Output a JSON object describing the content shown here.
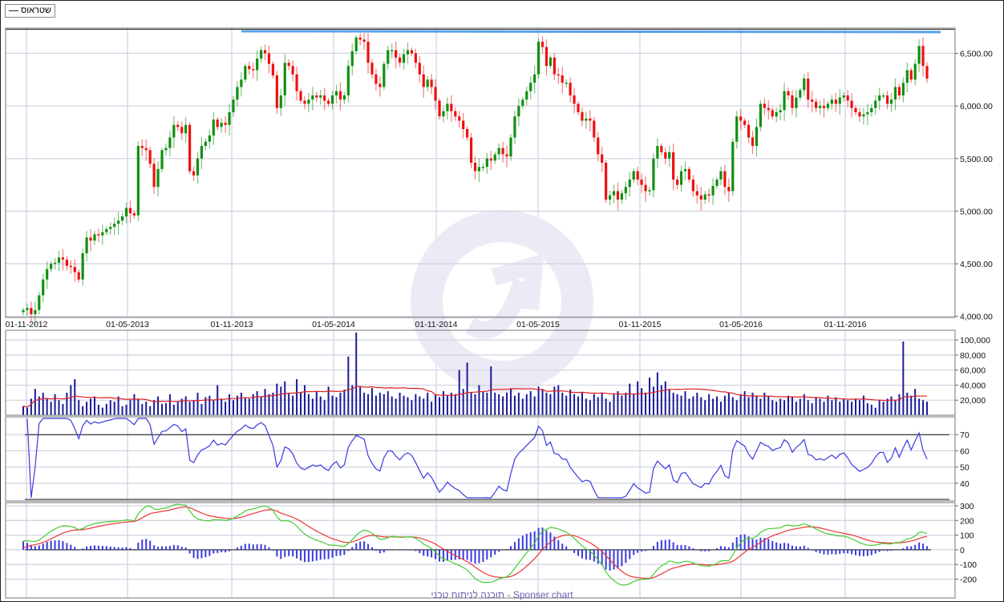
{
  "legend": {
    "label": "שטראוס"
  },
  "footer": {
    "text": "תוכנה לניתוח טכני - Sponser chart"
  },
  "colors": {
    "up": "#109010",
    "down": "#ee1111",
    "volume": "#1a1a9a",
    "volume_ma": "#e02020",
    "rsi": "#3a3ae0",
    "macd": "#44cc33",
    "signal": "#ee3333",
    "histogram": "#3a3ae0",
    "resistance": "#5aa0e8",
    "grid": "#d4d4e4"
  },
  "chart_data": [
    {
      "type": "candlestick",
      "panel": "price",
      "x_ticks": [
        "01-11-2012",
        "01-05-2013",
        "01-11-2013",
        "01-05-2014",
        "01-11-2014",
        "01-05-2015",
        "01-11-2015",
        "01-05-2016",
        "01-11-2016"
      ],
      "y_ticks": [
        "4,000.00",
        "4,500.00",
        "5,000.00",
        "5,500.00",
        "6,000.00",
        "6,500.00"
      ],
      "ylim": [
        3990,
        6740
      ],
      "grid": true,
      "resistance_level": 6710,
      "frequency": "weekly",
      "close": [
        4060,
        4080,
        4020,
        4060,
        4200,
        4350,
        4450,
        4500,
        4510,
        4560,
        4540,
        4480,
        4470,
        4420,
        4350,
        4600,
        4750,
        4720,
        4780,
        4770,
        4800,
        4830,
        4850,
        4880,
        4910,
        4950,
        5030,
        4980,
        4960,
        5620,
        5600,
        5580,
        5450,
        5230,
        5400,
        5580,
        5600,
        5700,
        5820,
        5800,
        5740,
        5820,
        5380,
        5340,
        5500,
        5620,
        5660,
        5720,
        5870,
        5800,
        5840,
        5820,
        5940,
        6060,
        6180,
        6250,
        6380,
        6350,
        6340,
        6450,
        6530,
        6500,
        6400,
        6290,
        5980,
        6100,
        6410,
        6380,
        6300,
        6140,
        6050,
        6020,
        6060,
        6100,
        6080,
        6100,
        6050,
        6020,
        6100,
        6140,
        6060,
        6100,
        6380,
        6520,
        6650,
        6630,
        6610,
        6410,
        6300,
        6210,
        6180,
        6400,
        6530,
        6530,
        6460,
        6410,
        6490,
        6530,
        6500,
        6410,
        6300,
        6180,
        6250,
        6180,
        6050,
        5900,
        5950,
        6020,
        5950,
        5900,
        5860,
        5780,
        5700,
        5460,
        5380,
        5420,
        5420,
        5500,
        5480,
        5540,
        5600,
        5540,
        5520,
        5700,
        5900,
        6000,
        6060,
        6140,
        6220,
        6300,
        6610,
        6560,
        6380,
        6460,
        6300,
        6290,
        6220,
        6220,
        6100,
        6020,
        5940,
        5860,
        5880,
        5860,
        5700,
        5540,
        5460,
        5110,
        5150,
        5190,
        5110,
        5170,
        5230,
        5300,
        5380,
        5300,
        5250,
        5190,
        5200,
        5500,
        5620,
        5560,
        5500,
        5560,
        5300,
        5250,
        5380,
        5400,
        5300,
        5190,
        5150,
        5110,
        5160,
        5150,
        5240,
        5300,
        5380,
        5230,
        5190,
        5660,
        5900,
        5860,
        5820,
        5700,
        5620,
        5800,
        6020,
        5980,
        5960,
        5900,
        5940,
        5960,
        6140,
        6100,
        5980,
        6080,
        6150,
        6260,
        6060,
        6040,
        5980,
        6000,
        5980,
        6020,
        6060,
        6020,
        6080,
        6100,
        6050,
        5980,
        5940,
        5900,
        5920,
        5940,
        5980,
        6050,
        6100,
        6100,
        6020,
        6060,
        6180,
        6100,
        6220,
        6340,
        6250,
        6400,
        6570,
        6380,
        6260
      ]
    },
    {
      "type": "bar",
      "panel": "volume",
      "y_ticks": [
        "20,000",
        "40,000",
        "60,000",
        "80,000",
        "100,000"
      ],
      "ylim": [
        0,
        113000
      ],
      "values": [
        12000,
        10000,
        22000,
        35000,
        25000,
        30000,
        22000,
        18000,
        28000,
        20000,
        15000,
        30000,
        40000,
        48000,
        20000,
        12000,
        18000,
        22000,
        25000,
        14000,
        10000,
        15000,
        20000,
        18000,
        25000,
        12000,
        14000,
        20000,
        28000,
        22000,
        15000,
        18000,
        12000,
        20000,
        25000,
        15000,
        16000,
        28000,
        14000,
        18000,
        22000,
        25000,
        18000,
        20000,
        30000,
        15000,
        24000,
        26000,
        20000,
        40000,
        22000,
        18000,
        28000,
        20000,
        26000,
        30000,
        24000,
        22000,
        28000,
        32000,
        25000,
        35000,
        28000,
        30000,
        42000,
        38000,
        45000,
        30000,
        26000,
        48000,
        30000,
        40000,
        28000,
        22000,
        32000,
        25000,
        20000,
        38000,
        26000,
        24000,
        30000,
        34000,
        78000,
        40000,
        110000,
        38000,
        30000,
        28000,
        36000,
        26000,
        30000,
        28000,
        32000,
        25000,
        22000,
        30000,
        26000,
        24000,
        20000,
        28000,
        25000,
        22000,
        30000,
        18000,
        28000,
        24000,
        32000,
        26000,
        30000,
        28000,
        60000,
        35000,
        70000,
        30000,
        28000,
        40000,
        32000,
        30000,
        65000,
        30000,
        28000,
        25000,
        30000,
        35000,
        26000,
        30000,
        22000,
        28000,
        32000,
        25000,
        38000,
        35000,
        30000,
        28000,
        38000,
        40000,
        30000,
        26000,
        34000,
        28000,
        25000,
        30000,
        22000,
        20000,
        28000,
        24000,
        30000,
        22000,
        18000,
        28000,
        32000,
        26000,
        30000,
        42000,
        28000,
        45000,
        36000,
        30000,
        50000,
        38000,
        57000,
        40000,
        45000,
        35000,
        30000,
        28000,
        26000,
        32000,
        22000,
        25000,
        30000,
        24000,
        20000,
        28000,
        22000,
        25000,
        18000,
        26000,
        30000,
        24000,
        20000,
        28000,
        32000,
        24000,
        30000,
        26000,
        22000,
        30000,
        25000,
        20000,
        18000,
        22000,
        20000,
        26000,
        24000,
        18000,
        22000,
        28000,
        20000,
        16000,
        24000,
        22000,
        18000,
        26000,
        20000,
        24000,
        18000,
        22000,
        20000,
        18000,
        22000,
        20000,
        26000,
        16000,
        14000,
        10000,
        20000,
        18000,
        22000,
        25000,
        20000,
        28000,
        98000,
        30000,
        26000,
        35000,
        22000,
        20000,
        18000
      ]
    },
    {
      "type": "line",
      "panel": "rsi",
      "y_ticks": [
        "40",
        "50",
        "60",
        "70"
      ],
      "ylim": [
        29,
        81
      ],
      "reference_lines": [
        70,
        30
      ]
    },
    {
      "type": "line",
      "panel": "macd",
      "y_ticks": [
        "-200",
        "-100",
        "0",
        "100",
        "200",
        "300"
      ],
      "ylim": [
        -250,
        300
      ]
    }
  ]
}
